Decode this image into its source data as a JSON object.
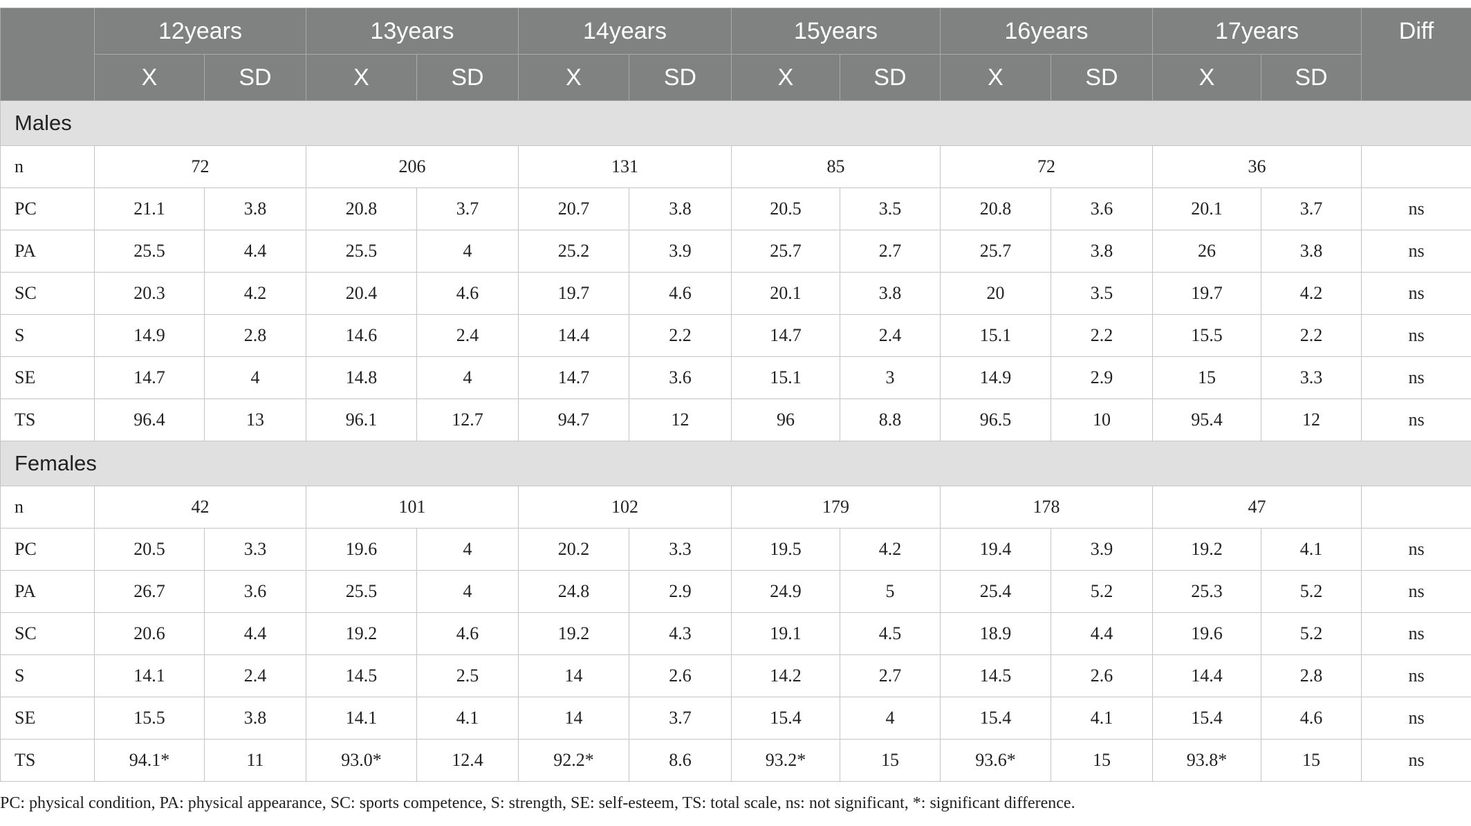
{
  "header": {
    "years": [
      "12years",
      "13years",
      "14years",
      "15years",
      "16years",
      "17years"
    ],
    "x_label": "X",
    "sd_label": "SD",
    "diff": "Diff"
  },
  "sections": [
    {
      "title": "Males",
      "n_label": "n",
      "n": [
        72,
        206,
        131,
        85,
        72,
        36
      ],
      "rows": [
        {
          "label": "PC",
          "values": [
            21.1,
            3.8,
            20.8,
            3.7,
            20.7,
            3.8,
            20.5,
            3.5,
            20.8,
            3.6,
            20.1,
            3.7
          ],
          "diff": "ns"
        },
        {
          "label": "PA",
          "values": [
            25.5,
            4.4,
            25.5,
            4,
            25.2,
            3.9,
            25.7,
            2.7,
            25.7,
            3.8,
            26,
            3.8
          ],
          "diff": "ns"
        },
        {
          "label": "SC",
          "values": [
            20.3,
            4.2,
            20.4,
            4.6,
            19.7,
            4.6,
            20.1,
            3.8,
            20,
            3.5,
            19.7,
            4.2
          ],
          "diff": "ns"
        },
        {
          "label": "S",
          "values": [
            14.9,
            2.8,
            14.6,
            2.4,
            14.4,
            2.2,
            14.7,
            2.4,
            15.1,
            2.2,
            15.5,
            2.2
          ],
          "diff": "ns"
        },
        {
          "label": "SE",
          "values": [
            14.7,
            4,
            14.8,
            4,
            14.7,
            3.6,
            15.1,
            3,
            14.9,
            2.9,
            15,
            3.3
          ],
          "diff": "ns"
        },
        {
          "label": "TS",
          "values": [
            96.4,
            13,
            96.1,
            12.7,
            94.7,
            12,
            96,
            8.8,
            96.5,
            10,
            95.4,
            12
          ],
          "diff": "ns"
        }
      ]
    },
    {
      "title": "Females",
      "n_label": "n",
      "n": [
        42,
        101,
        102,
        179,
        178,
        47
      ],
      "rows": [
        {
          "label": "PC",
          "values": [
            20.5,
            3.3,
            19.6,
            4,
            20.2,
            3.3,
            19.5,
            4.2,
            19.4,
            3.9,
            19.2,
            4.1
          ],
          "diff": "ns"
        },
        {
          "label": "PA",
          "values": [
            26.7,
            3.6,
            25.5,
            4,
            24.8,
            2.9,
            24.9,
            5,
            25.4,
            5.2,
            25.3,
            5.2
          ],
          "diff": "ns"
        },
        {
          "label": "SC",
          "values": [
            20.6,
            4.4,
            19.2,
            4.6,
            19.2,
            4.3,
            19.1,
            4.5,
            18.9,
            4.4,
            19.6,
            5.2
          ],
          "diff": "ns"
        },
        {
          "label": "S",
          "values": [
            14.1,
            2.4,
            14.5,
            2.5,
            14,
            2.6,
            14.2,
            2.7,
            14.5,
            2.6,
            14.4,
            2.8
          ],
          "diff": "ns"
        },
        {
          "label": "SE",
          "values": [
            15.5,
            3.8,
            14.1,
            4.1,
            14,
            3.7,
            15.4,
            4,
            15.4,
            4.1,
            15.4,
            4.6
          ],
          "diff": "ns"
        },
        {
          "label": "TS",
          "values": [
            "94.1*",
            11,
            "93.0*",
            12.4,
            "92.2*",
            8.6,
            "93.2*",
            15,
            "93.6*",
            15,
            "93.8*",
            15
          ],
          "diff": "ns"
        }
      ]
    }
  ],
  "footnote": "PC: physical condition, PA: physical appearance, SC: sports competence, S: strength, SE: self-esteem, TS: total scale, ns: not significant, *: significant difference."
}
